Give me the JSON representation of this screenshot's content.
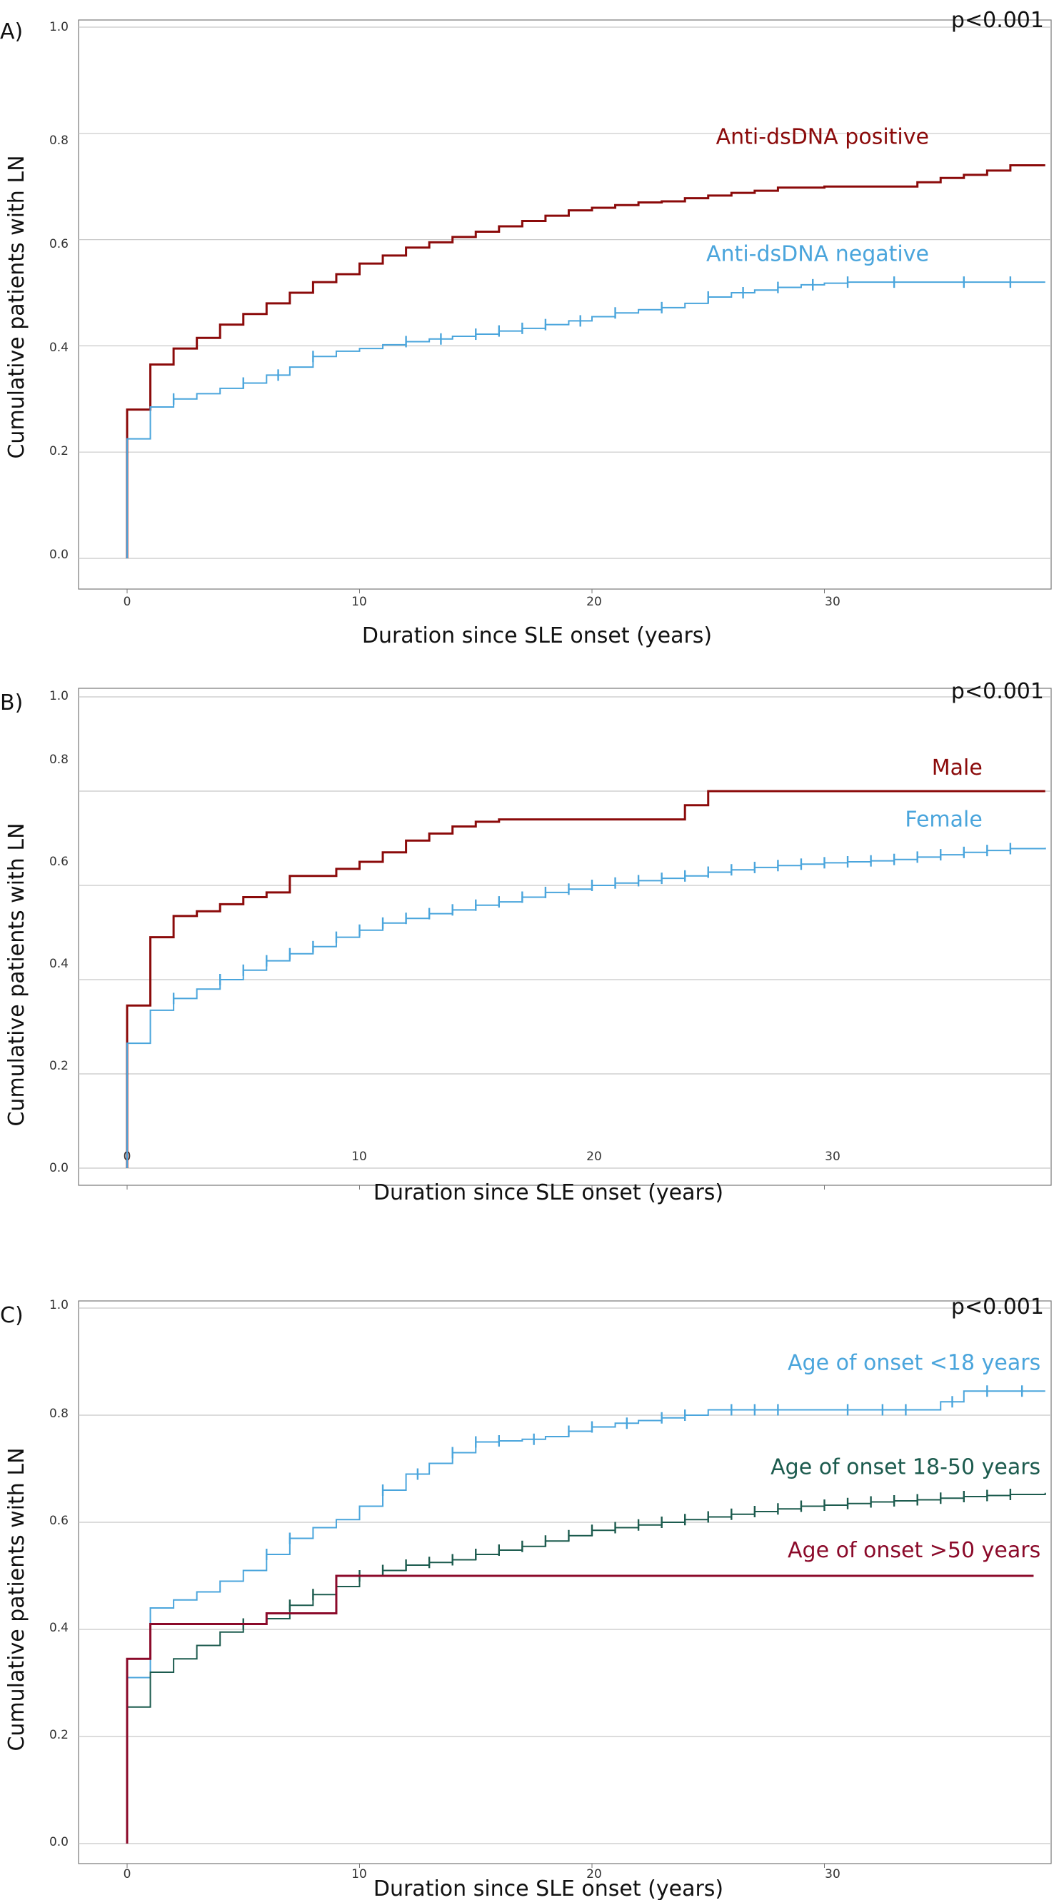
{
  "chart_data": [
    {
      "type": "line",
      "panel_label": "A)",
      "p_value": "p<0.001",
      "xlabel": "Duration since SLE onset (years)",
      "ylabel": "Cumulative patients with LN",
      "xlim": [
        -2.2,
        39.5
      ],
      "ylim": [
        -0.06,
        1.04
      ],
      "xticks": [
        0,
        10,
        20,
        30
      ],
      "xtick_labels": [
        "0",
        "10",
        "20",
        "30"
      ],
      "yticks": [
        0.0,
        0.2,
        0.4,
        0.6,
        0.8,
        1.0
      ],
      "ytick_labels": [
        "0.0",
        "0.2",
        "0.4",
        "0.6",
        "0.8",
        "1.0"
      ],
      "grid": "horizontal",
      "series": [
        {
          "name": "Anti-dsDNA positive",
          "color": "#8b0a0a",
          "stroke_width": 3,
          "x": [
            0,
            1,
            2,
            3,
            4,
            5,
            6,
            7,
            8,
            9,
            10,
            11,
            12,
            13,
            14,
            15,
            16,
            17,
            18,
            19,
            20,
            21,
            22,
            23,
            24,
            25,
            26,
            27,
            28,
            30,
            32,
            34,
            35,
            36,
            37,
            38,
            39.5
          ],
          "y": [
            0.28,
            0.365,
            0.395,
            0.415,
            0.44,
            0.46,
            0.48,
            0.5,
            0.52,
            0.535,
            0.555,
            0.57,
            0.585,
            0.595,
            0.605,
            0.615,
            0.625,
            0.635,
            0.645,
            0.655,
            0.66,
            0.665,
            0.67,
            0.672,
            0.678,
            0.683,
            0.688,
            0.692,
            0.698,
            0.7,
            0.7,
            0.708,
            0.716,
            0.722,
            0.73,
            0.74,
            0.74
          ],
          "censor_x": [],
          "label_anchor": [
            34.5,
            0.78
          ]
        },
        {
          "name": "Anti-dsDNA negative",
          "color": "#4aa5dc",
          "stroke_width": 2,
          "x": [
            0,
            1,
            2,
            3,
            4,
            5,
            6,
            7,
            8,
            9,
            10,
            11,
            12,
            13,
            14,
            15,
            16,
            17,
            18,
            19,
            20,
            21,
            22,
            23,
            24,
            25,
            26,
            27,
            28,
            29,
            30,
            31,
            33,
            35,
            37,
            39.5
          ],
          "y": [
            0.225,
            0.285,
            0.3,
            0.31,
            0.32,
            0.33,
            0.345,
            0.36,
            0.38,
            0.39,
            0.395,
            0.402,
            0.408,
            0.413,
            0.418,
            0.422,
            0.428,
            0.433,
            0.44,
            0.447,
            0.455,
            0.462,
            0.468,
            0.472,
            0.48,
            0.492,
            0.5,
            0.505,
            0.51,
            0.515,
            0.518,
            0.52,
            0.52,
            0.52,
            0.52,
            0.52
          ],
          "censor_x": [
            2,
            5,
            6.5,
            8,
            12,
            13.5,
            15,
            16,
            17,
            18,
            19.5,
            21,
            23,
            25,
            26.5,
            28,
            29.5,
            31,
            33,
            36,
            38
          ],
          "label_anchor": [
            34.5,
            0.56
          ]
        }
      ],
      "series_labels": [
        "Anti-dsDNA positive",
        "Anti-dsDNA negative"
      ]
    },
    {
      "type": "line",
      "panel_label": "B)",
      "p_value": "p<0.001",
      "xlabel": "Duration since SLE onset (years)",
      "ylabel": "Cumulative patients with LN",
      "xlim": [
        -2.2,
        39.5
      ],
      "ylim": [
        -0.06,
        1.04
      ],
      "xticks": [
        0,
        10,
        20,
        30
      ],
      "xtick_labels": [
        "0",
        "10",
        "20",
        "30"
      ],
      "yticks": [
        0.0,
        0.2,
        0.4,
        0.6,
        0.8,
        1.0
      ],
      "ytick_labels": [
        "0.0",
        "0.2",
        "0.4",
        "0.6",
        "0.8",
        "1.0"
      ],
      "grid": "horizontal",
      "series": [
        {
          "name": "Male",
          "color": "#8b0a0a",
          "stroke_width": 3,
          "x": [
            0,
            1,
            2,
            3,
            4,
            5,
            6,
            7,
            8,
            9,
            10,
            11,
            12,
            13,
            14,
            15,
            16,
            17,
            18,
            20,
            22,
            24,
            25,
            27,
            30,
            33,
            36,
            39.5
          ],
          "y": [
            0.345,
            0.49,
            0.535,
            0.545,
            0.56,
            0.575,
            0.585,
            0.62,
            0.62,
            0.635,
            0.65,
            0.67,
            0.695,
            0.71,
            0.725,
            0.735,
            0.74,
            0.74,
            0.74,
            0.74,
            0.74,
            0.77,
            0.8,
            0.8,
            0.8,
            0.8,
            0.8,
            0.8
          ],
          "censor_x": [],
          "label_anchor": [
            36.8,
            0.835
          ]
        },
        {
          "name": "Female",
          "color": "#4aa5dc",
          "stroke_width": 2,
          "x": [
            0,
            1,
            2,
            3,
            4,
            5,
            6,
            7,
            8,
            9,
            10,
            11,
            12,
            13,
            14,
            15,
            16,
            17,
            18,
            19,
            20,
            21,
            22,
            23,
            24,
            25,
            26,
            27,
            28,
            29,
            30,
            31,
            32,
            33,
            34,
            35,
            36,
            37,
            38,
            39.5
          ],
          "y": [
            0.265,
            0.335,
            0.36,
            0.38,
            0.4,
            0.42,
            0.44,
            0.455,
            0.47,
            0.49,
            0.505,
            0.52,
            0.53,
            0.54,
            0.548,
            0.558,
            0.565,
            0.575,
            0.585,
            0.592,
            0.6,
            0.605,
            0.61,
            0.615,
            0.62,
            0.628,
            0.633,
            0.638,
            0.642,
            0.645,
            0.648,
            0.65,
            0.652,
            0.655,
            0.66,
            0.665,
            0.67,
            0.674,
            0.678,
            0.68
          ],
          "censor_x": [
            2,
            4,
            5,
            6,
            7,
            8,
            9,
            10,
            11,
            12,
            13,
            14,
            15,
            16,
            17,
            18,
            19,
            20,
            21,
            22,
            23,
            24,
            25,
            26,
            27,
            28,
            29,
            30,
            31,
            32,
            33,
            34,
            35,
            36,
            37,
            38
          ],
          "label_anchor": [
            36.8,
            0.725
          ]
        }
      ],
      "series_labels": [
        "Male",
        "Female"
      ]
    },
    {
      "type": "line",
      "panel_label": "C)",
      "p_value": "p<0.001",
      "xlabel": "Duration since SLE onset (years)",
      "ylabel": "Cumulative patients with LN",
      "xlim": [
        -2.2,
        39.5
      ],
      "ylim": [
        -0.06,
        1.04
      ],
      "xticks": [
        0,
        10,
        20,
        30
      ],
      "xtick_labels": [
        "0",
        "10",
        "20",
        "30"
      ],
      "yticks": [
        0.0,
        0.2,
        0.4,
        0.6,
        0.8,
        1.0
      ],
      "ytick_labels": [
        "0.0",
        "0.2",
        "0.4",
        "0.6",
        "0.8",
        "1.0"
      ],
      "grid": "horizontal",
      "series": [
        {
          "name": "Age of onset <18 years",
          "color": "#4aa5dc",
          "stroke_width": 2,
          "x": [
            0,
            1,
            2,
            3,
            4,
            5,
            6,
            7,
            8,
            9,
            10,
            11,
            12,
            13,
            14,
            15,
            16,
            17,
            18,
            19,
            20,
            21,
            22,
            23,
            24,
            25,
            26,
            28,
            30,
            32,
            34,
            35,
            36,
            37,
            38,
            39.5
          ],
          "y": [
            0.31,
            0.44,
            0.455,
            0.47,
            0.49,
            0.51,
            0.54,
            0.57,
            0.59,
            0.605,
            0.63,
            0.66,
            0.69,
            0.71,
            0.73,
            0.75,
            0.752,
            0.755,
            0.76,
            0.77,
            0.778,
            0.785,
            0.79,
            0.795,
            0.8,
            0.81,
            0.81,
            0.81,
            0.81,
            0.81,
            0.81,
            0.825,
            0.845,
            0.845,
            0.845,
            0.845
          ],
          "censor_x": [
            6,
            7,
            11,
            12.5,
            14,
            15,
            16,
            17.5,
            19,
            20,
            21.5,
            23,
            24,
            26,
            27,
            28,
            31,
            32.5,
            33.5,
            35.5,
            37,
            38.5
          ],
          "label_anchor": [
            39.3,
            0.885
          ]
        },
        {
          "name": "Age of onset 18-50 years",
          "color": "#1c5b4e",
          "stroke_width": 2,
          "x": [
            0,
            1,
            2,
            3,
            4,
            5,
            6,
            7,
            8,
            9,
            10,
            11,
            12,
            13,
            14,
            15,
            16,
            17,
            18,
            19,
            20,
            21,
            22,
            23,
            24,
            25,
            26,
            27,
            28,
            29,
            30,
            31,
            32,
            33,
            34,
            35,
            36,
            37,
            38,
            39.5
          ],
          "y": [
            0.255,
            0.32,
            0.345,
            0.37,
            0.395,
            0.41,
            0.42,
            0.445,
            0.465,
            0.48,
            0.5,
            0.51,
            0.52,
            0.525,
            0.53,
            0.54,
            0.548,
            0.555,
            0.565,
            0.575,
            0.585,
            0.59,
            0.595,
            0.6,
            0.605,
            0.61,
            0.615,
            0.62,
            0.625,
            0.63,
            0.632,
            0.635,
            0.638,
            0.64,
            0.642,
            0.645,
            0.648,
            0.65,
            0.652,
            0.655
          ],
          "censor_x": [
            5,
            7,
            8,
            10,
            11,
            12,
            13,
            14,
            15,
            16,
            17,
            18,
            19,
            20,
            21,
            22,
            23,
            24,
            25,
            26,
            27,
            28,
            29,
            30,
            31,
            32,
            33,
            34,
            35,
            36,
            37,
            38
          ],
          "label_anchor": [
            39.3,
            0.69
          ]
        },
        {
          "name": "Age of onset >50 years",
          "color": "#8b0a2a",
          "stroke_width": 3,
          "x": [
            0,
            1,
            2,
            4,
            6,
            7,
            8.5,
            9,
            12,
            15,
            20,
            25,
            30,
            35,
            39
          ],
          "y": [
            0.345,
            0.41,
            0.41,
            0.41,
            0.43,
            0.43,
            0.43,
            0.5,
            0.5,
            0.5,
            0.5,
            0.5,
            0.5,
            0.5,
            0.5
          ],
          "censor_x": [],
          "label_anchor": [
            39.3,
            0.535
          ]
        }
      ],
      "series_labels": [
        "Age of onset <18 years",
        "Age of onset 18-50 years",
        "Age of onset >50 years"
      ]
    }
  ]
}
